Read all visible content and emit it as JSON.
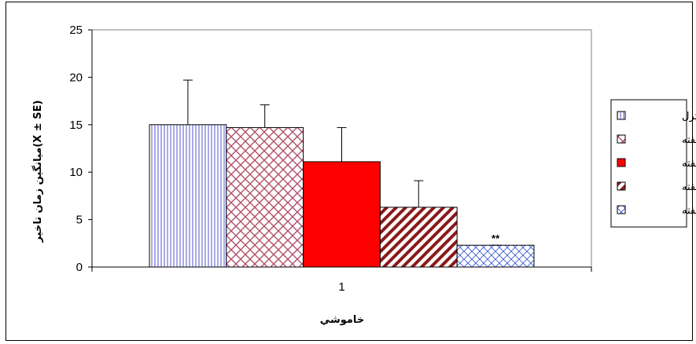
{
  "chart_data": {
    "type": "bar",
    "categories": [
      "1"
    ],
    "xlabel": "خاموشي",
    "ylabel": "ميانگين زمان تاخير(X ± SE)",
    "ylim": [
      0,
      25
    ],
    "yticks": [
      0,
      5,
      10,
      15,
      20,
      25
    ],
    "grid": false,
    "legend_position": "right",
    "series": [
      {
        "name": "كنترل",
        "values": [
          15.0
        ],
        "error": [
          4.7
        ],
        "pattern": "vertical-lines",
        "color": "#b9b9ee"
      },
      {
        "name": "يك هفته",
        "values": [
          14.7
        ],
        "error": [
          2.4
        ],
        "pattern": "crosshatch-diagonal",
        "color": "#b0506a"
      },
      {
        "name": "دو هفته",
        "values": [
          11.1
        ],
        "error": [
          3.6
        ],
        "pattern": "solid",
        "color": "#ff0000"
      },
      {
        "name": "سه هفته",
        "values": [
          6.3
        ],
        "error": [
          2.8
        ],
        "pattern": "thick-diagonal",
        "color": "#8b1a1a"
      },
      {
        "name": "چهار هفته",
        "values": [
          2.3
        ],
        "error": [
          0.0
        ],
        "pattern": "diagonal-grid",
        "color": "#3a5bd9"
      }
    ],
    "annotations": [
      {
        "series": 4,
        "text": "**"
      }
    ]
  }
}
